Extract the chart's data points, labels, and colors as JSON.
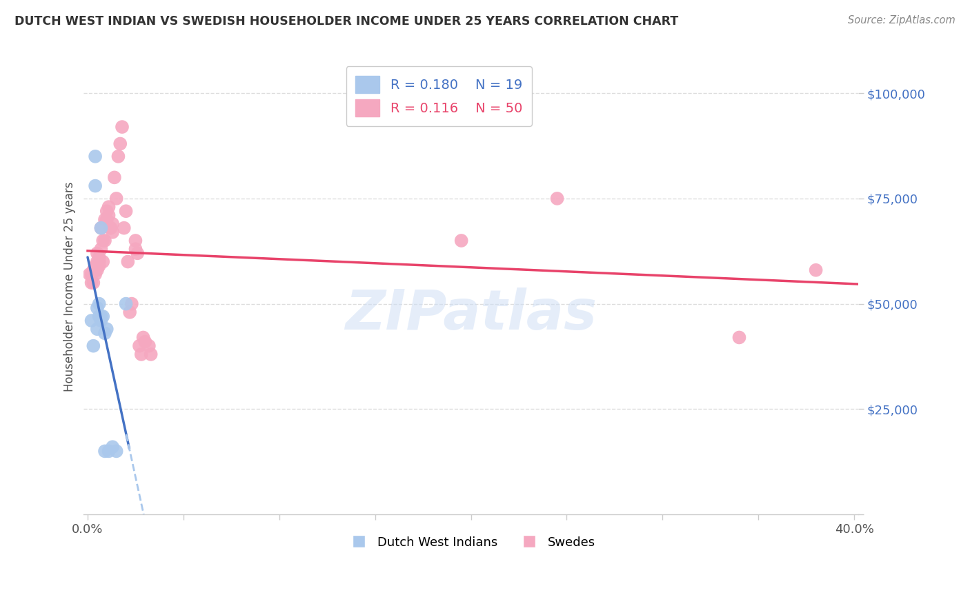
{
  "title": "DUTCH WEST INDIAN VS SWEDISH HOUSEHOLDER INCOME UNDER 25 YEARS CORRELATION CHART",
  "source": "Source: ZipAtlas.com",
  "ylabel": "Householder Income Under 25 years",
  "xlim": [
    -0.002,
    0.402
  ],
  "ylim": [
    0,
    108000
  ],
  "ytick_vals": [
    0,
    25000,
    50000,
    75000,
    100000
  ],
  "ytick_labels": [
    "",
    "$25,000",
    "$50,000",
    "$75,000",
    "$100,000"
  ],
  "xtick_vals": [
    0.0,
    0.05,
    0.1,
    0.15,
    0.2,
    0.25,
    0.3,
    0.35,
    0.4
  ],
  "background_color": "#ffffff",
  "grid_color": "#dddddd",
  "watermark": "ZIPatlas",
  "legend_R1": "R = 0.180",
  "legend_N1": "N = 19",
  "legend_R2": "R = 0.116",
  "legend_N2": "N = 50",
  "blue_scatter_color": "#aac8ec",
  "pink_scatter_color": "#f5a8c0",
  "blue_line_color": "#4472c4",
  "pink_line_color": "#e8436a",
  "blue_dash_color": "#aac8ec",
  "blue_text_color": "#4472c4",
  "pink_text_color": "#e8436a",
  "title_color": "#333333",
  "axis_color": "#555555",
  "ytick_color": "#4472c4",
  "tick_color": "#cccccc",
  "dutch_x": [
    0.002,
    0.003,
    0.004,
    0.004,
    0.005,
    0.005,
    0.006,
    0.006,
    0.007,
    0.007,
    0.007,
    0.008,
    0.009,
    0.009,
    0.01,
    0.011,
    0.013,
    0.015,
    0.02
  ],
  "dutch_y": [
    46000,
    40000,
    85000,
    78000,
    49000,
    44000,
    47000,
    50000,
    46000,
    47000,
    68000,
    47000,
    43000,
    15000,
    44000,
    15000,
    16000,
    15000,
    50000
  ],
  "swedish_x": [
    0.001,
    0.002,
    0.002,
    0.003,
    0.003,
    0.004,
    0.004,
    0.005,
    0.005,
    0.005,
    0.006,
    0.006,
    0.006,
    0.007,
    0.007,
    0.008,
    0.008,
    0.009,
    0.009,
    0.01,
    0.01,
    0.011,
    0.011,
    0.012,
    0.012,
    0.013,
    0.013,
    0.014,
    0.015,
    0.016,
    0.017,
    0.018,
    0.019,
    0.02,
    0.021,
    0.022,
    0.023,
    0.025,
    0.025,
    0.026,
    0.027,
    0.028,
    0.029,
    0.03,
    0.032,
    0.033,
    0.195,
    0.245,
    0.34,
    0.38
  ],
  "swedish_y": [
    57000,
    57000,
    55000,
    58000,
    55000,
    59000,
    57000,
    62000,
    60000,
    58000,
    60000,
    61000,
    59000,
    63000,
    68000,
    65000,
    60000,
    65000,
    70000,
    70000,
    72000,
    71000,
    73000,
    68000,
    68000,
    69000,
    67000,
    80000,
    75000,
    85000,
    88000,
    92000,
    68000,
    72000,
    60000,
    48000,
    50000,
    63000,
    65000,
    62000,
    40000,
    38000,
    42000,
    41000,
    40000,
    38000,
    65000,
    75000,
    42000,
    58000
  ]
}
